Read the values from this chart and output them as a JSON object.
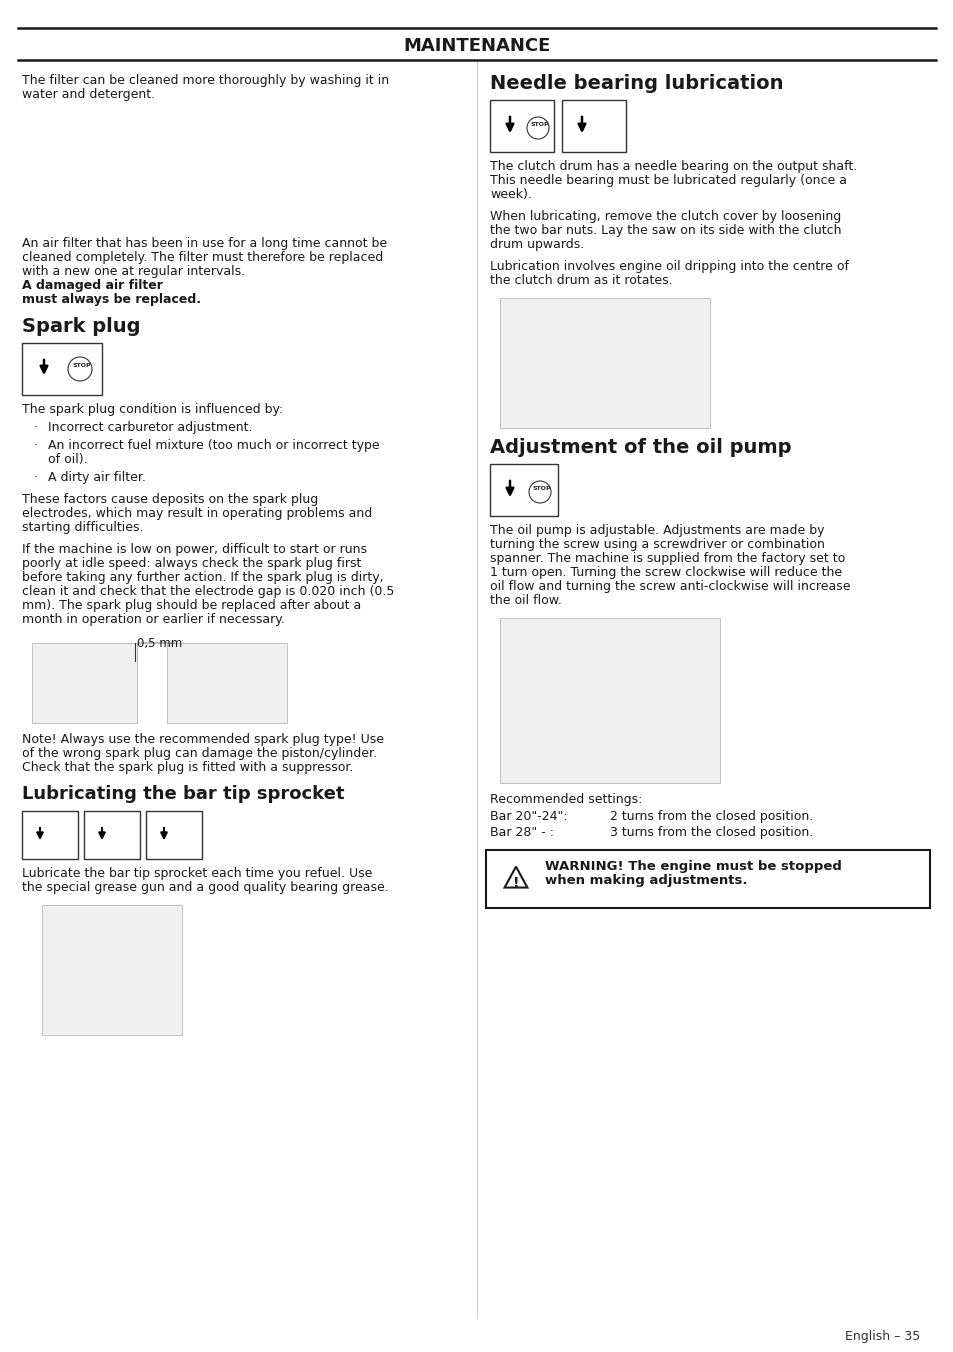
{
  "page_title": "MAINTENANCE",
  "footer": "English – 35",
  "bg_color": "#ffffff",
  "text_color": "#1a1a1a",
  "left_col": {
    "intro1": "The filter can be cleaned more thoroughly by washing it in",
    "intro2": "water and detergent.",
    "para1_1": "An air filter that has been in use for a long time cannot be",
    "para1_2": "cleaned completely. The filter must therefore be replaced",
    "para1_3": "with a new one at regular intervals. ",
    "para1_bold1": "A damaged air filter",
    "para1_bold2": "must always be replaced.",
    "sec1": "Spark plug",
    "spark_intro": "The spark plug condition is influenced by:",
    "bullet1": "Incorrect carburetor adjustment.",
    "bullet2a": "An incorrect fuel mixture (too much or incorrect type",
    "bullet2b": "of oil).",
    "bullet3": "A dirty air filter.",
    "sp1": "These factors cause deposits on the spark plug",
    "sp2": "electrodes, which may result in operating problems and",
    "sp3": "starting difficulties.",
    "sp4": "If the machine is low on power, difficult to start or runs",
    "sp5": "poorly at idle speed: always check the spark plug first",
    "sp6": "before taking any further action. If the spark plug is dirty,",
    "sp7": "clean it and check that the electrode gap is 0.020 inch (0.5",
    "sp8": "mm). The spark plug should be replaced after about a",
    "sp9": "month in operation or earlier if necessary.",
    "dim_label": "0,5 mm",
    "note1": "Note! Always use the recommended spark plug type! Use",
    "note2": "of the wrong spark plug can damage the piston/cylinder.",
    "note3": "Check that the spark plug is fitted with a suppressor.",
    "sec2": "Lubricating the bar tip sprocket",
    "lub1": "Lubricate the bar tip sprocket each time you refuel. Use",
    "lub2": "the special grease gun and a good quality bearing grease."
  },
  "right_col": {
    "sec3": "Needle bearing lubrication",
    "nb1": "The clutch drum has a needle bearing on the output shaft.",
    "nb2": "This needle bearing must be lubricated regularly (once a",
    "nb3": "week).",
    "nb4": "When lubricating, remove the clutch cover by loosening",
    "nb5": "the two bar nuts. Lay the saw on its side with the clutch",
    "nb6": "drum upwards.",
    "nb7": "Lubrication involves engine oil dripping into the centre of",
    "nb8": "the clutch drum as it rotates.",
    "sec4": "Adjustment of the oil pump",
    "op1": "The oil pump is adjustable. Adjustments are made by",
    "op2": "turning the screw using a screwdriver or combination",
    "op3": "spanner. The machine is supplied from the factory set to",
    "op4": "1 turn open. Turning the screw clockwise will reduce the",
    "op5": "oil flow and turning the screw anti-clockwise will increase",
    "op6": "the oil flow.",
    "rec": "Recommended settings:",
    "s1l": "Bar 20\"-24\":",
    "s1v": "2 turns from the closed position.",
    "s2l": "Bar 28\" - :",
    "s2v": "3 turns from the closed position.",
    "warn1": "WARNING! The engine must be stopped",
    "warn2": "when making adjustments."
  }
}
